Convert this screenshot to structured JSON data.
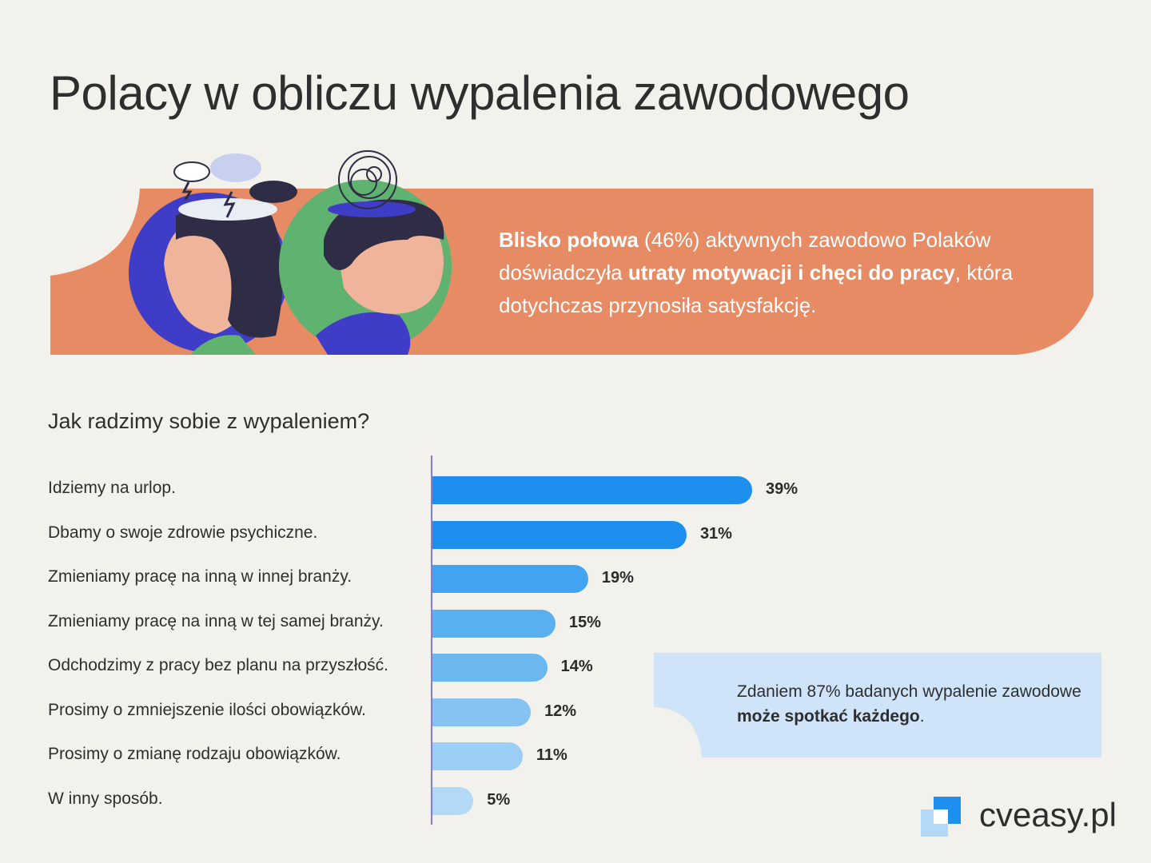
{
  "header": {
    "title": "Polacy w obliczu wypalenia zawodowego"
  },
  "banner": {
    "bold1": "Blisko połowa",
    "text1": " (46%) aktywnych zawodowo Polaków doświadczyła ",
    "bold2": "utraty motywacji i chęci do pracy",
    "text2": ", która dotychczas przynosiła satysfakcję.",
    "color": "#e68b63"
  },
  "chart_data": {
    "type": "bar",
    "orientation": "horizontal",
    "title": "Jak radzimy sobie z wypaleniem?",
    "categories": [
      "Idziemy na urlop.",
      "Dbamy o swoje zdrowie psychiczne.",
      "Zmieniamy pracę na inną w innej branży.",
      "Zmieniamy pracę na inną w tej samej branży.",
      "Odchodzimy z pracy bez planu na przyszłość.",
      "Prosimy o zmniejszenie ilości obowiązków.",
      "Prosimy o zmianę rodzaju obowiązków.",
      "W inny sposób."
    ],
    "values": [
      39,
      31,
      19,
      15,
      14,
      12,
      11,
      5
    ],
    "value_labels": [
      "39%",
      "31%",
      "19%",
      "15%",
      "14%",
      "12%",
      "11%",
      "5%"
    ],
    "colors": [
      "#1e8fee",
      "#1e8fee",
      "#42a3f2",
      "#5aafef",
      "#6bb7f0",
      "#86c3f3",
      "#9ccdf5",
      "#b3d9f7"
    ]
  },
  "note": {
    "text1": "Zdaniem 87% badanych wypalenie zawodowe ",
    "bold": "może spotkać każdego",
    "text2": ".",
    "color": "#cfe4f8"
  },
  "brand": {
    "name": "cveasy.pl"
  }
}
